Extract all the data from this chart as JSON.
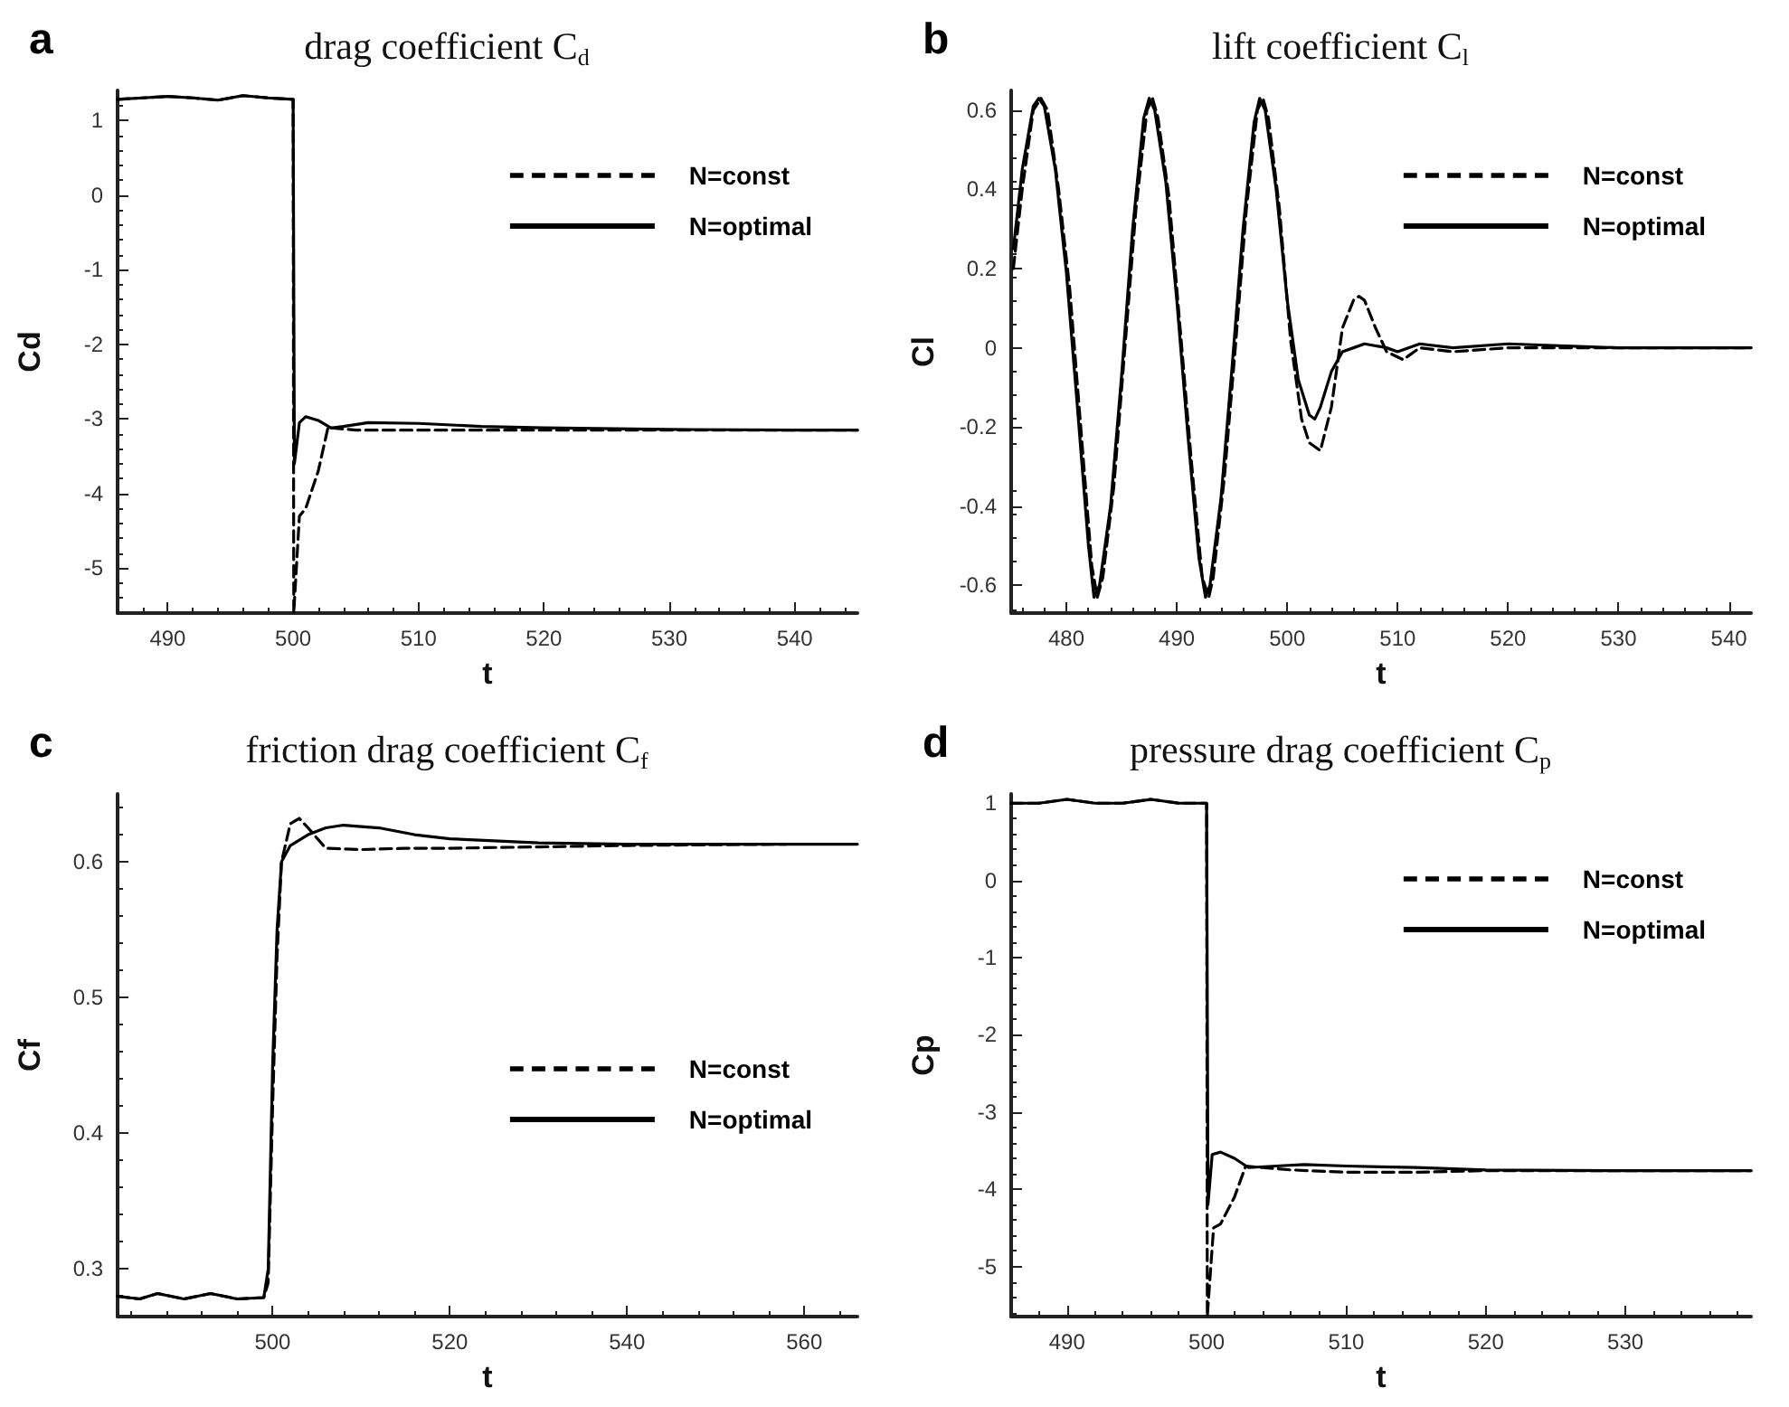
{
  "chart_data": [
    {
      "type": "line",
      "title": "drag coefficient C$_{d}$",
      "xlabel": "t",
      "ylabel": "Cd",
      "annotations": [
        "a"
      ],
      "xlim": [
        486,
        545
      ],
      "ylim": [
        -5.6,
        1.4
      ],
      "xticks": [
        490,
        500,
        510,
        520,
        530,
        540
      ],
      "yticks": [
        -5,
        -4,
        -3,
        -2,
        -1,
        0,
        1
      ],
      "legend": "top right",
      "series": [
        {
          "name": "N=const",
          "color": "#000000",
          "line_style": "dashed",
          "x": [
            486,
            488,
            490,
            492,
            494,
            496,
            498,
            500,
            500.05,
            500.5,
            501,
            502,
            502.8,
            503,
            505,
            510,
            520,
            545
          ],
          "values": [
            1.28,
            1.3,
            1.32,
            1.3,
            1.27,
            1.33,
            1.3,
            1.28,
            -5.6,
            -4.3,
            -4.2,
            -3.7,
            -3.1,
            -3.12,
            -3.15,
            -3.15,
            -3.15,
            -3.15
          ]
        },
        {
          "name": "N=optimal",
          "color": "#000000",
          "line_style": "solid",
          "x": [
            486,
            488,
            490,
            492,
            494,
            496,
            498,
            500,
            500.1,
            500.5,
            501,
            502,
            503,
            504,
            506,
            510,
            515,
            520,
            530,
            540,
            545
          ],
          "values": [
            1.28,
            1.3,
            1.32,
            1.3,
            1.27,
            1.33,
            1.3,
            1.28,
            -3.6,
            -3.05,
            -2.97,
            -3.02,
            -3.12,
            -3.1,
            -3.05,
            -3.06,
            -3.1,
            -3.12,
            -3.14,
            -3.15,
            -3.15
          ]
        }
      ]
    },
    {
      "type": "line",
      "title": "lift coefficient C$_{l}$",
      "xlabel": "t",
      "ylabel": "Cl",
      "annotations": [
        "b"
      ],
      "xlim": [
        475,
        542
      ],
      "ylim": [
        -0.67,
        0.65
      ],
      "xticks": [
        480,
        490,
        500,
        510,
        520,
        530,
        540
      ],
      "yticks": [
        -0.6,
        -0.4,
        -0.2,
        0,
        0.2,
        0.4,
        0.6
      ],
      "legend": "top right",
      "series": [
        {
          "name": "N=const",
          "color": "#000000",
          "line_style": "dashed",
          "x": [
            475.2,
            476,
            477,
            477.7,
            478.3,
            479.3,
            480.3,
            481.3,
            482.3,
            482.8,
            483.3,
            484.3,
            485.3,
            486.3,
            487.3,
            487.8,
            488.3,
            489.3,
            490.3,
            491.3,
            492.3,
            492.9,
            493.3,
            494.3,
            495.3,
            496.3,
            497.3,
            497.8,
            498.3,
            499.3,
            500.3,
            501.3,
            502,
            503,
            504,
            505,
            506,
            506.5,
            507,
            508,
            509,
            510.5,
            511,
            512,
            515,
            520,
            530,
            542
          ],
          "values": [
            0.2,
            0.4,
            0.6,
            0.63,
            0.6,
            0.4,
            0.15,
            -0.2,
            -0.55,
            -0.63,
            -0.58,
            -0.35,
            0,
            0.35,
            0.6,
            0.63,
            0.58,
            0.38,
            0.05,
            -0.28,
            -0.58,
            -0.63,
            -0.58,
            -0.33,
            0,
            0.35,
            0.6,
            0.63,
            0.58,
            0.35,
            0.02,
            -0.18,
            -0.24,
            -0.26,
            -0.15,
            0.05,
            0.12,
            0.13,
            0.12,
            0.05,
            -0.01,
            -0.03,
            -0.02,
            0,
            -0.01,
            0,
            0,
            0
          ]
        },
        {
          "name": "N=optimal",
          "color": "#000000",
          "line_style": "solid",
          "x": [
            475.2,
            476,
            477,
            477.5,
            478,
            479,
            480,
            481,
            482,
            482.5,
            483,
            484,
            485,
            486,
            487,
            487.5,
            488,
            489,
            490,
            491,
            492,
            492.6,
            493,
            494,
            495,
            496,
            497,
            497.5,
            498,
            499,
            500,
            501,
            502,
            502.5,
            503,
            504,
            505,
            506,
            507,
            509,
            510,
            512,
            515,
            520,
            530,
            542
          ],
          "values": [
            0.25,
            0.45,
            0.61,
            0.63,
            0.61,
            0.45,
            0.19,
            -0.15,
            -0.5,
            -0.63,
            -0.6,
            -0.4,
            -0.07,
            0.3,
            0.58,
            0.63,
            0.6,
            0.42,
            0.12,
            -0.22,
            -0.53,
            -0.63,
            -0.6,
            -0.38,
            -0.05,
            0.3,
            0.57,
            0.63,
            0.6,
            0.4,
            0.12,
            -0.08,
            -0.17,
            -0.18,
            -0.15,
            -0.06,
            -0.01,
            0,
            0.01,
            0,
            -0.01,
            0.01,
            0,
            0.01,
            0,
            0
          ]
        }
      ]
    },
    {
      "type": "line",
      "title": "friction drag coefficient C$_{f}$",
      "xlabel": "t",
      "ylabel": "Cf",
      "annotations": [
        "c"
      ],
      "xlim": [
        482.5,
        566
      ],
      "ylim": [
        0.265,
        0.65
      ],
      "xticks": [
        500,
        520,
        540,
        560
      ],
      "yticks": [
        0.3,
        0.4,
        0.5,
        0.6
      ],
      "legend": "right",
      "series": [
        {
          "name": "N=const",
          "color": "#000000",
          "line_style": "dashed",
          "x": [
            482.5,
            485,
            487,
            490,
            493,
            496,
            499,
            499.5,
            500,
            500.5,
            501,
            502,
            503,
            504,
            506,
            510,
            515,
            520,
            530,
            540,
            558
          ],
          "values": [
            0.28,
            0.278,
            0.282,
            0.278,
            0.282,
            0.278,
            0.279,
            0.29,
            0.42,
            0.53,
            0.6,
            0.628,
            0.632,
            0.625,
            0.61,
            0.609,
            0.61,
            0.61,
            0.611,
            0.612,
            0.613
          ]
        },
        {
          "name": "N=optimal",
          "color": "#000000",
          "line_style": "solid",
          "x": [
            482.5,
            485,
            487,
            490,
            493,
            496,
            499,
            499.5,
            500,
            500.5,
            501,
            502,
            504,
            506,
            508,
            512,
            516,
            520,
            530,
            540,
            566
          ],
          "values": [
            0.28,
            0.278,
            0.282,
            0.278,
            0.282,
            0.278,
            0.279,
            0.3,
            0.45,
            0.55,
            0.6,
            0.612,
            0.62,
            0.625,
            0.627,
            0.625,
            0.62,
            0.617,
            0.614,
            0.613,
            0.613
          ]
        }
      ]
    },
    {
      "type": "line",
      "title": "pressure drag coefficient C$_{p}$",
      "xlabel": "t",
      "ylabel": "Cp",
      "annotations": [
        "d"
      ],
      "xlim": [
        486,
        539
      ],
      "ylim": [
        -5.65,
        1.12
      ],
      "xticks": [
        490,
        500,
        510,
        520,
        530
      ],
      "yticks": [
        -5,
        -4,
        -3,
        -2,
        -1,
        0,
        1
      ],
      "legend": "top right",
      "series": [
        {
          "name": "N=const",
          "color": "#000000",
          "line_style": "dashed",
          "x": [
            486,
            488,
            490,
            492,
            494,
            496,
            498,
            500,
            500.05,
            500.5,
            501,
            502,
            502.8,
            504,
            506,
            510,
            515,
            520,
            539
          ],
          "values": [
            1.0,
            1.0,
            1.05,
            1.0,
            1.0,
            1.05,
            1.0,
            1.0,
            -5.65,
            -4.5,
            -4.45,
            -4.1,
            -3.7,
            -3.72,
            -3.75,
            -3.78,
            -3.78,
            -3.76,
            -3.76
          ]
        },
        {
          "name": "N=optimal",
          "color": "#000000",
          "line_style": "solid",
          "x": [
            486,
            488,
            490,
            492,
            494,
            496,
            498,
            500,
            500.1,
            500.4,
            501,
            502,
            503,
            505,
            507,
            510,
            515,
            520,
            530,
            539
          ],
          "values": [
            1.0,
            1.0,
            1.05,
            1.0,
            1.0,
            1.05,
            1.0,
            1.0,
            -4.2,
            -3.55,
            -3.52,
            -3.6,
            -3.72,
            -3.7,
            -3.68,
            -3.7,
            -3.72,
            -3.75,
            -3.76,
            -3.76
          ]
        }
      ]
    }
  ]
}
